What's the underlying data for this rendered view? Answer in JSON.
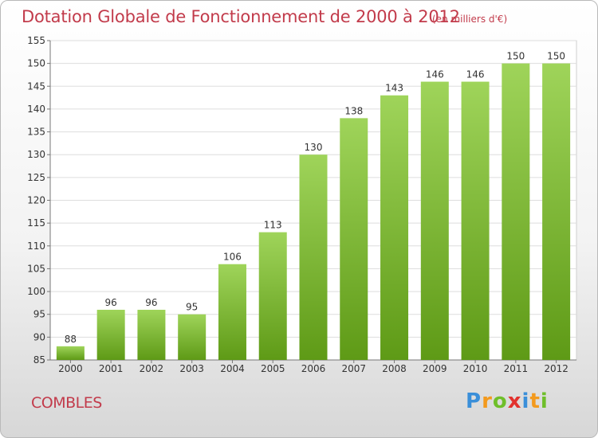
{
  "chart_data": {
    "type": "bar",
    "title": "Dotation Globale de Fonctionnement de 2000 à 2012",
    "subtitle": "(en milliers d'€)",
    "xlabel": "",
    "ylabel": "",
    "categories": [
      "2000",
      "2001",
      "2002",
      "2003",
      "2004",
      "2005",
      "2006",
      "2007",
      "2008",
      "2009",
      "2010",
      "2011",
      "2012"
    ],
    "values": [
      88,
      96,
      96,
      95,
      106,
      113,
      130,
      138,
      143,
      146,
      146,
      150,
      150
    ],
    "ylim": [
      85,
      155
    ],
    "yticks": [
      85,
      90,
      95,
      100,
      105,
      110,
      115,
      120,
      125,
      130,
      135,
      140,
      145,
      150,
      155
    ],
    "grid": true,
    "bar_color_top": "#9fd45a",
    "bar_color_bottom": "#5e9a16"
  },
  "footer": {
    "commune": "COMBLES",
    "logo_letters": [
      "P",
      "r",
      "o",
      "x",
      "i",
      "t",
      "i"
    ]
  },
  "colors": {
    "title": "#c23b4b",
    "grid": "#dddddd"
  }
}
